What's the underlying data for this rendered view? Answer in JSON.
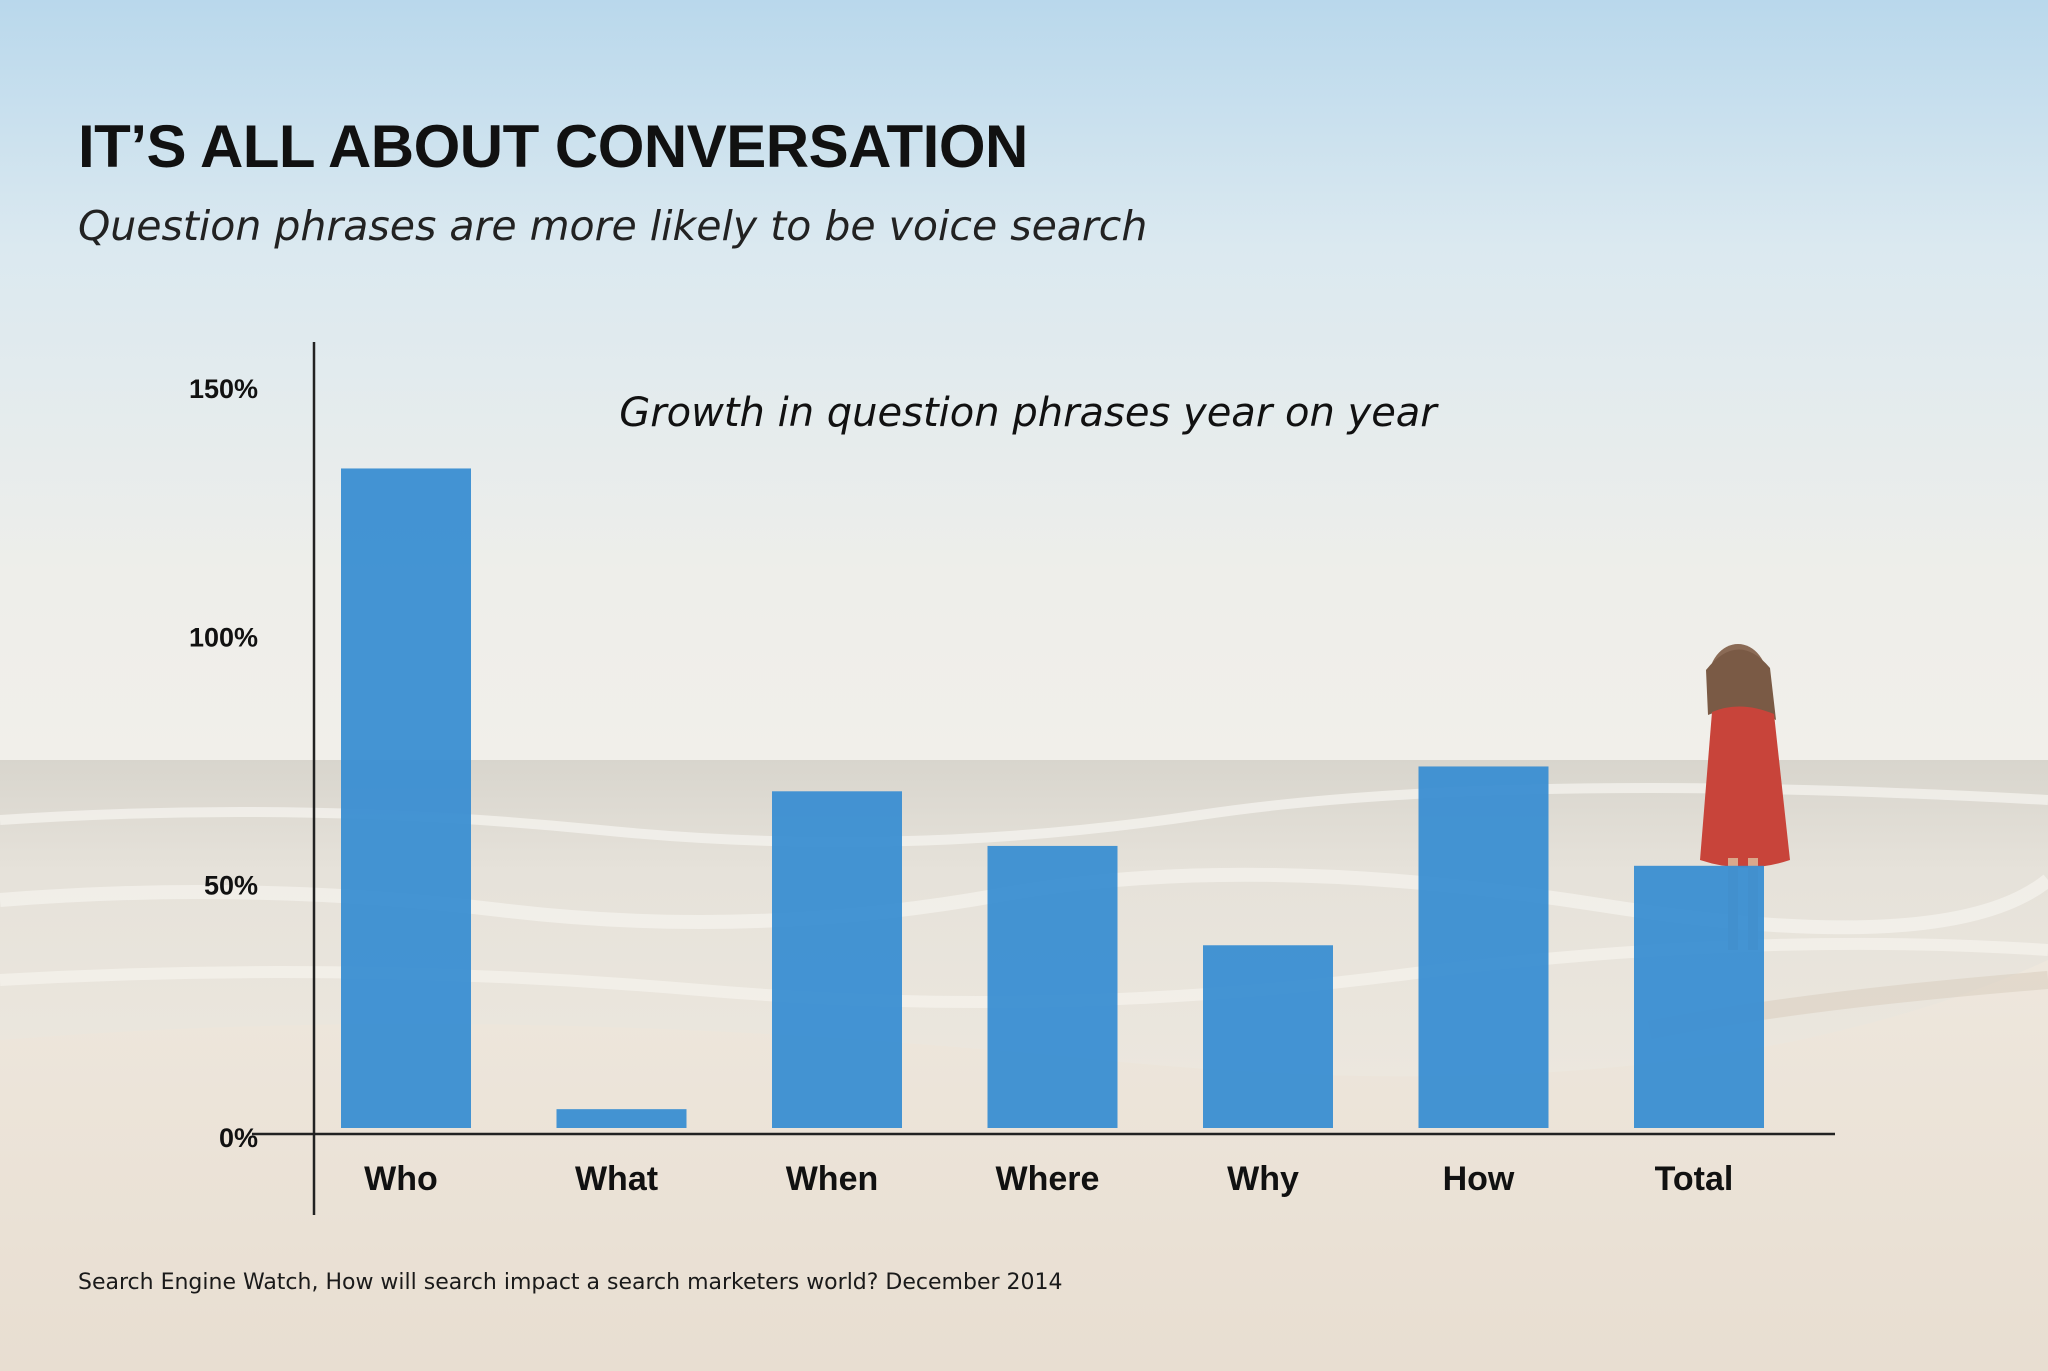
{
  "title": "IT’S ALL ABOUT CONVERSATION",
  "subtitle": "Question phrases are more likely to be voice search",
  "source": "Search Engine Watch, How will search impact a search marketers world? December 2014",
  "colors": {
    "bar": "#3a8ed2",
    "axis": "#222222",
    "text": "#111111"
  },
  "chart_data": {
    "type": "bar",
    "title": "Growth in question phrases year on year",
    "xlabel": "",
    "ylabel": "",
    "categories": [
      "Who",
      "What",
      "When",
      "Where",
      "Why",
      "How",
      "Total"
    ],
    "values": [
      134,
      5,
      69,
      58,
      38,
      74,
      54
    ],
    "ylim": [
      0,
      150
    ],
    "yticks": [
      0,
      50,
      100,
      150
    ],
    "ytick_labels": [
      "0%",
      "50%",
      "100%",
      "150%"
    ],
    "grid": false,
    "legend": "none"
  }
}
